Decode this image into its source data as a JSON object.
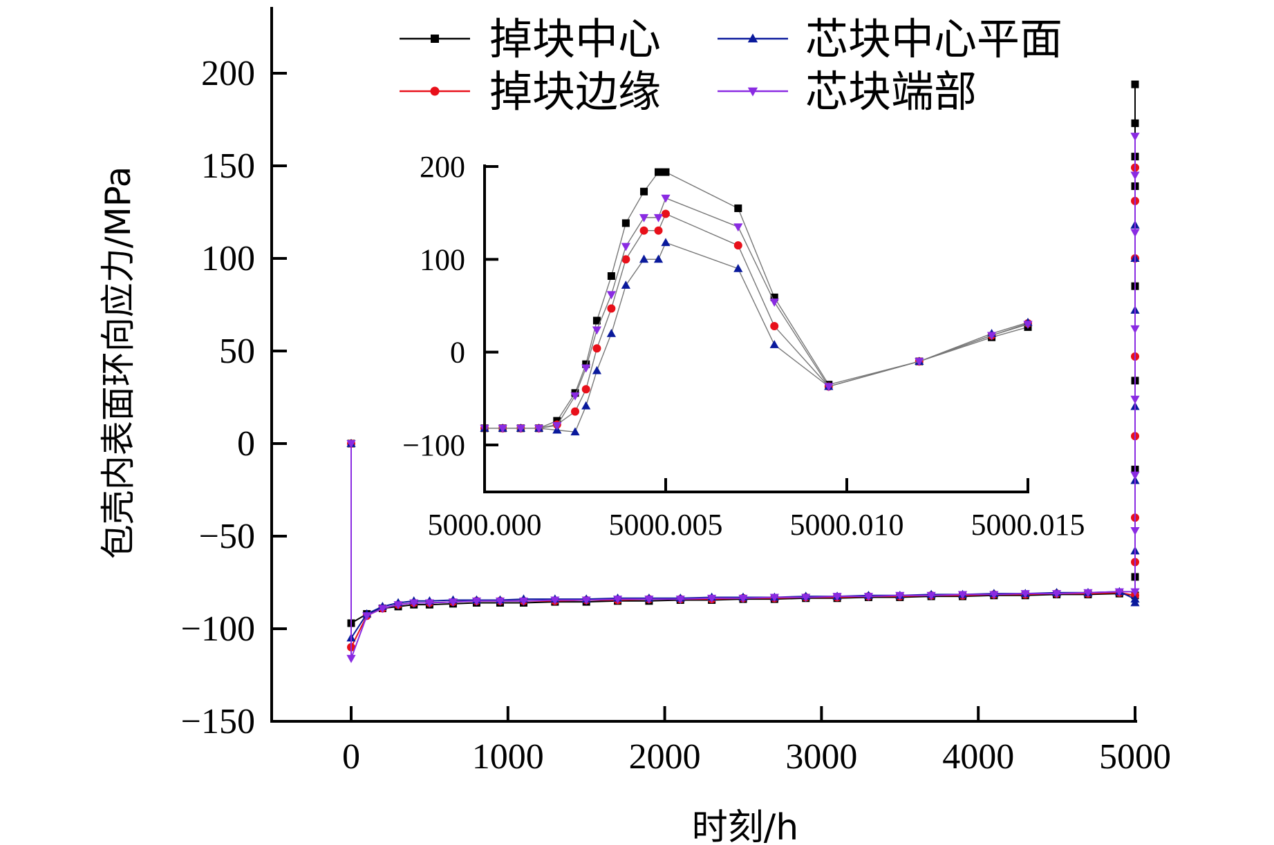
{
  "chart_data": [
    {
      "type": "line",
      "role": "main",
      "xlabel": "时刻/h",
      "ylabel": "包壳内表面环向应力/MPa",
      "xlim": [
        -500,
        5000
      ],
      "ylim": [
        -150,
        230
      ],
      "xticks": [
        0,
        1000,
        2000,
        3000,
        4000,
        5000
      ],
      "xtick_labels": [
        "0",
        "1000",
        "2000",
        "3000",
        "4000",
        "5000"
      ],
      "yticks": [
        -150,
        -100,
        -50,
        0,
        50,
        100,
        150,
        200
      ],
      "ytick_labels": [
        "−150",
        "−100",
        "−50",
        "0",
        "50",
        "100",
        "150",
        "200"
      ],
      "legend_position": "top",
      "series": [
        {
          "name": "掉块中心",
          "color": "#000000",
          "marker": "square",
          "x": [
            0,
            0,
            100,
            200,
            300,
            400,
            500,
            650,
            800,
            950,
            1100,
            1300,
            1500,
            1700,
            1900,
            2100,
            2300,
            2500,
            2700,
            2900,
            3100,
            3300,
            3500,
            3700,
            3900,
            4100,
            4300,
            4500,
            4700,
            4900,
            5000,
            5000,
            5000,
            5000,
            5000,
            5000,
            5000,
            5000,
            5000
          ],
          "y": [
            0,
            -97,
            -92,
            -89,
            -88,
            -87,
            -87,
            -86.5,
            -86,
            -86,
            -86,
            -85.5,
            -85.5,
            -85,
            -85,
            -84.5,
            -84.5,
            -84,
            -84,
            -83.5,
            -83.5,
            -83,
            -83,
            -82.5,
            -82.5,
            -82,
            -82,
            -81.5,
            -81.5,
            -81,
            -82,
            -72,
            -14,
            34,
            85,
            139,
            173,
            194,
            155
          ]
        },
        {
          "name": "掉块边缘",
          "color": "#e8101a",
          "marker": "circle",
          "x": [
            0,
            0,
            100,
            200,
            300,
            400,
            500,
            650,
            800,
            950,
            1100,
            1300,
            1500,
            1700,
            1900,
            2100,
            2300,
            2500,
            2700,
            2900,
            3100,
            3300,
            3500,
            3700,
            3900,
            4100,
            4300,
            4500,
            4700,
            4900,
            5000,
            5000,
            5000,
            5000,
            5000,
            5000,
            5000,
            5000
          ],
          "y": [
            0,
            -110,
            -93,
            -89,
            -87,
            -86,
            -86,
            -85.5,
            -85,
            -85,
            -85,
            -85,
            -84.5,
            -84.5,
            -84,
            -84,
            -84,
            -83.5,
            -83.5,
            -83,
            -83,
            -82.5,
            -82.5,
            -82,
            -82,
            -81.5,
            -81.5,
            -81,
            -81,
            -80.5,
            -82,
            -64,
            -40,
            4,
            47,
            100,
            131,
            149
          ]
        },
        {
          "name": "芯块中心平面",
          "color": "#0a1a9c",
          "marker": "triangle-up",
          "x": [
            0,
            0,
            100,
            200,
            300,
            400,
            500,
            650,
            800,
            950,
            1100,
            1300,
            1500,
            1700,
            1900,
            2100,
            2300,
            2500,
            2700,
            2900,
            3100,
            3300,
            3500,
            3700,
            3900,
            4100,
            4300,
            4500,
            4700,
            4900,
            5000,
            5000,
            5000,
            5000,
            5000,
            5000,
            5000,
            5000
          ],
          "y": [
            0,
            -105,
            -92,
            -88,
            -86,
            -85,
            -85,
            -84.5,
            -84.5,
            -84.5,
            -84,
            -84,
            -84,
            -83.5,
            -83.5,
            -83.5,
            -83,
            -83,
            -83,
            -82.5,
            -82.5,
            -82,
            -82,
            -81.5,
            -81.5,
            -81,
            -81,
            -80.5,
            -80.5,
            -80,
            -84,
            -86,
            -58,
            -20,
            20,
            72,
            100,
            118
          ]
        },
        {
          "name": "芯块端部",
          "color": "#8a2be2",
          "marker": "triangle-down",
          "x": [
            0,
            0,
            100,
            200,
            300,
            400,
            500,
            650,
            800,
            950,
            1100,
            1300,
            1500,
            1700,
            1900,
            2100,
            2300,
            2500,
            2700,
            2900,
            3100,
            3300,
            3500,
            3700,
            3900,
            4100,
            4300,
            4500,
            4700,
            4900,
            5000,
            5000,
            5000,
            5000,
            5000,
            5000,
            5000,
            5000
          ],
          "y": [
            0,
            -116,
            -93,
            -89,
            -87,
            -86,
            -86,
            -85.5,
            -85,
            -85,
            -85,
            -84.5,
            -84.5,
            -84,
            -84,
            -84,
            -83.5,
            -83.5,
            -83,
            -83,
            -82.5,
            -82.5,
            -82,
            -82,
            -81.5,
            -81.5,
            -81,
            -81,
            -80.5,
            -80,
            -80,
            -47,
            -17,
            24,
            62,
            114,
            145,
            166
          ]
        }
      ]
    },
    {
      "type": "line",
      "role": "inset",
      "xlim": [
        5000.0,
        5000.015
      ],
      "ylim": [
        -150,
        200
      ],
      "xticks": [
        5000.0,
        5000.005,
        5000.01,
        5000.015
      ],
      "xtick_labels": [
        "5000.000",
        "5000.005",
        "5000.010",
        "5000.015"
      ],
      "yticks": [
        -100,
        0,
        100,
        200
      ],
      "ytick_labels": [
        "−100",
        "0",
        "100",
        "200"
      ],
      "series": [
        {
          "name": "掉块中心",
          "color": "#000000",
          "marker": "square",
          "x": [
            5000.0,
            5000.0005,
            5000.001,
            5000.0015,
            5000.002,
            5000.0025,
            5000.0028,
            5000.0031,
            5000.0035,
            5000.0039,
            5000.0044,
            5000.0048,
            5000.005,
            5000.007,
            5000.008,
            5000.0095,
            5000.012,
            5000.014,
            5000.015
          ],
          "y": [
            -82,
            -82,
            -82,
            -82,
            -74,
            -44,
            -13,
            34,
            82,
            139,
            173,
            194,
            194,
            155,
            59,
            -35,
            -10,
            16,
            27
          ],
          "y_fix": "inset points"
        },
        {
          "name": "掉块边缘",
          "color": "#e8101a",
          "marker": "circle",
          "x": [
            5000.0,
            5000.0005,
            5000.001,
            5000.0015,
            5000.002,
            5000.0025,
            5000.0028,
            5000.0031,
            5000.0035,
            5000.0039,
            5000.0044,
            5000.0048,
            5000.005,
            5000.007,
            5000.008,
            5000.0095,
            5000.012,
            5000.014,
            5000.015
          ],
          "y": [
            -82,
            -82,
            -82,
            -82,
            -78,
            -64,
            -40,
            4,
            47,
            100,
            131,
            131,
            149,
            115,
            28,
            -37,
            -10,
            18,
            31
          ]
        },
        {
          "name": "芯块中心平面",
          "color": "#0a1a9c",
          "marker": "triangle-up",
          "x": [
            5000.0,
            5000.0005,
            5000.001,
            5000.0015,
            5000.002,
            5000.0025,
            5000.0028,
            5000.0031,
            5000.0035,
            5000.0039,
            5000.0044,
            5000.0048,
            5000.005,
            5000.007,
            5000.008,
            5000.0095,
            5000.012,
            5000.014,
            5000.015
          ],
          "y": [
            -82,
            -82,
            -82,
            -82,
            -84,
            -86,
            -58,
            -20,
            20,
            72,
            100,
            100,
            118,
            90,
            8,
            -37,
            -10,
            20,
            32
          ]
        },
        {
          "name": "芯块端部",
          "color": "#8a2be2",
          "marker": "triangle-down",
          "x": [
            5000.0,
            5000.0005,
            5000.001,
            5000.0015,
            5000.002,
            5000.0025,
            5000.0028,
            5000.0031,
            5000.0035,
            5000.0039,
            5000.0044,
            5000.0048,
            5000.005,
            5000.007,
            5000.008,
            5000.0095,
            5000.012,
            5000.014,
            5000.015
          ],
          "y": [
            -82,
            -82,
            -82,
            -82,
            -79,
            -47,
            -17,
            24,
            62,
            114,
            145,
            145,
            166,
            135,
            54,
            -37,
            -10,
            18,
            30
          ]
        }
      ]
    }
  ],
  "legend": {
    "items": [
      {
        "label": "掉块中心",
        "color": "#000000",
        "marker": "square"
      },
      {
        "label": "芯块中心平面",
        "color": "#0a1a9c",
        "marker": "triangle-up"
      },
      {
        "label": "掉块边缘",
        "color": "#e8101a",
        "marker": "circle"
      },
      {
        "label": "芯块端部",
        "color": "#8a2be2",
        "marker": "triangle-down"
      }
    ]
  }
}
